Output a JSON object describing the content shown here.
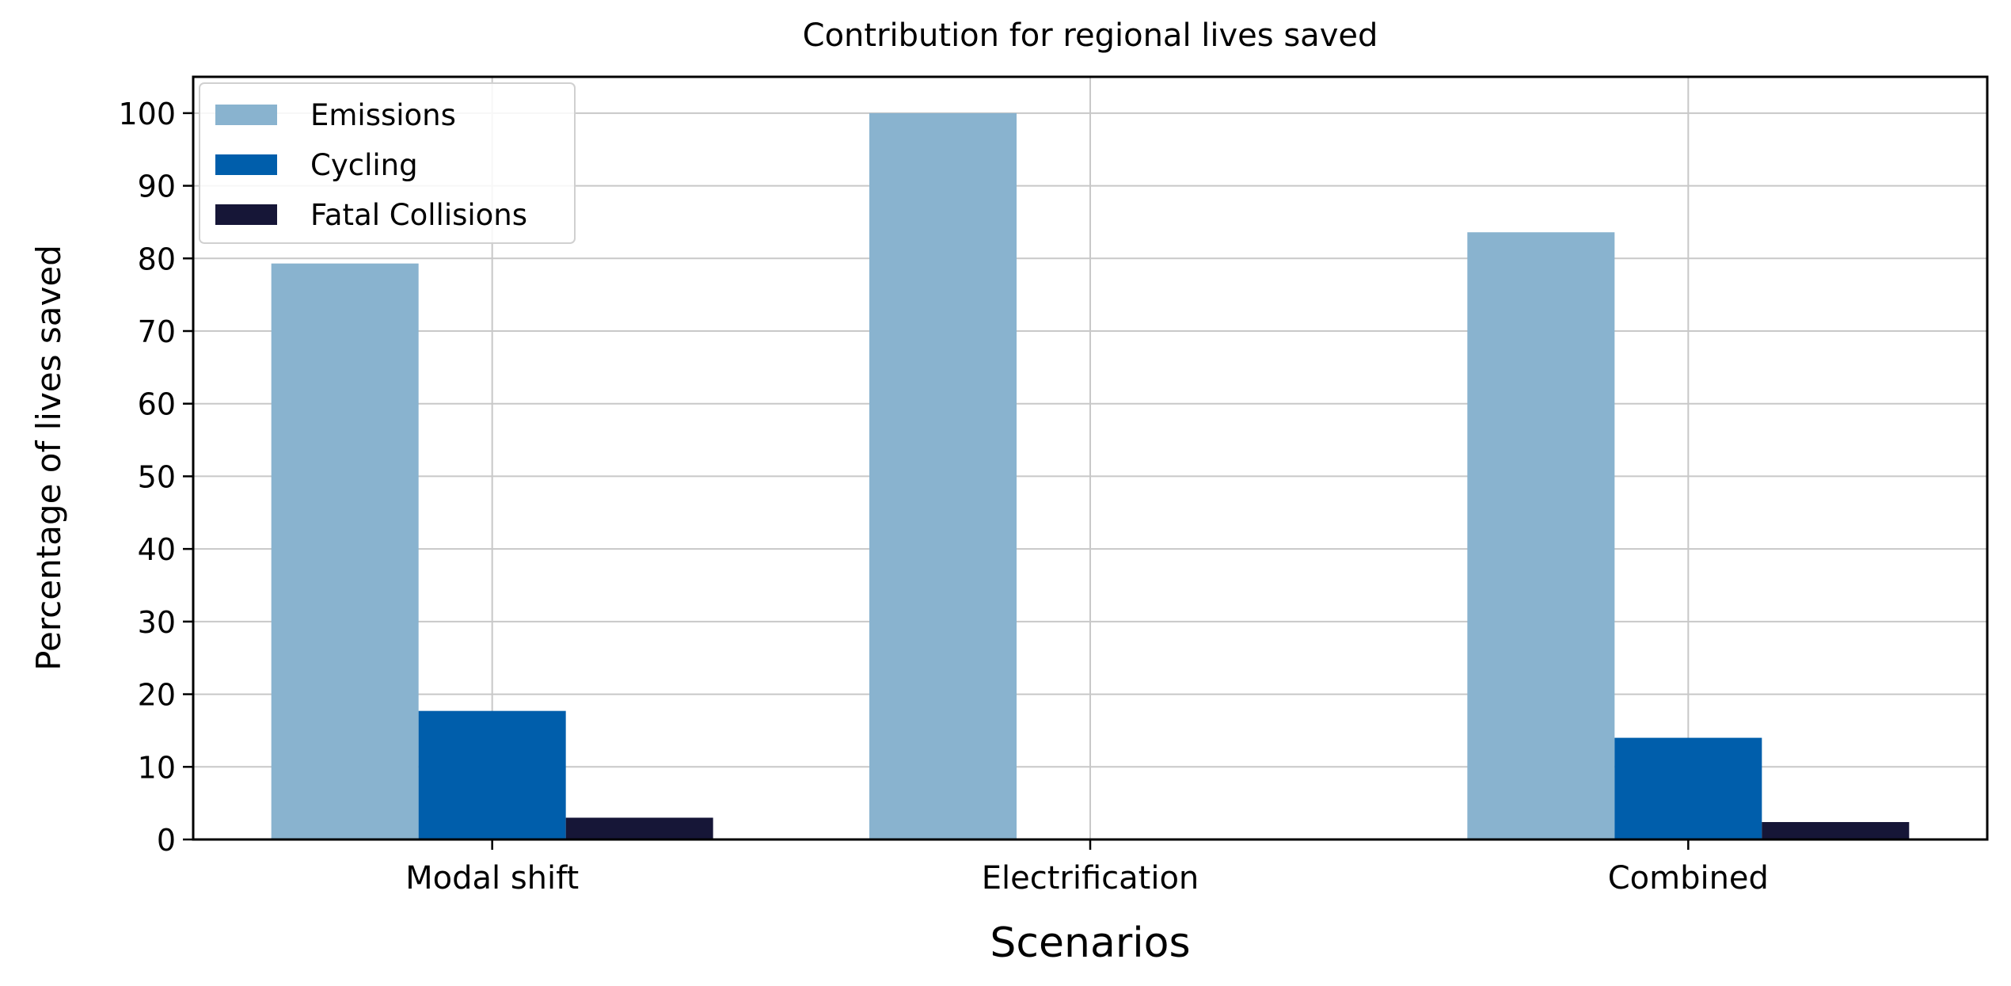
{
  "chart_data": {
    "type": "bar",
    "title": "Contribution for regional lives saved",
    "xlabel": "Scenarios",
    "ylabel": "Percentage of lives saved",
    "categories": [
      "Modal shift",
      "Electrification",
      "Combined"
    ],
    "series": [
      {
        "name": "Emissions",
        "color": "#89b3cf",
        "values": [
          79.3,
          100,
          83.6
        ]
      },
      {
        "name": "Cycling",
        "color": "#005eab",
        "values": [
          17.7,
          0,
          14.0
        ]
      },
      {
        "name": "Fatal Collisions",
        "color": "#161637",
        "values": [
          3.0,
          0,
          2.4
        ]
      }
    ],
    "ylim": [
      0,
      105
    ],
    "yticks": [
      0,
      10,
      20,
      30,
      40,
      50,
      60,
      70,
      80,
      90,
      100
    ],
    "grid": true,
    "legend_position": "top-left"
  }
}
